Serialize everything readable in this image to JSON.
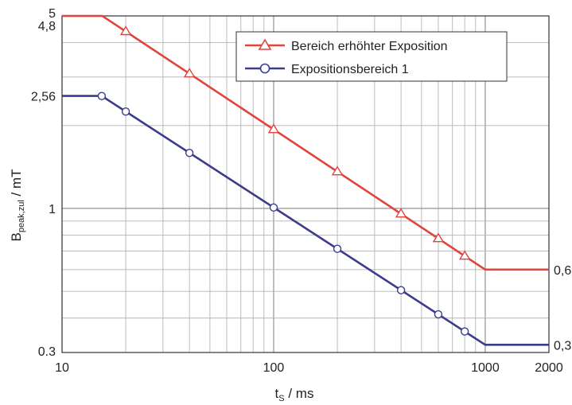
{
  "chart_data": {
    "type": "line",
    "xscale": "log",
    "yscale": "log",
    "xlim": [
      10,
      2000
    ],
    "ylim": [
      0.3,
      5
    ],
    "grid": true,
    "legend_position": "top-right",
    "xlabel": {
      "main": "t",
      "sub": "S",
      "unit": " / ms"
    },
    "ylabel": {
      "main": "B",
      "sub": "peak,zul",
      "unit": " / mT"
    },
    "x_ticks": [
      {
        "value": 10,
        "label": "10"
      },
      {
        "value": 100,
        "label": "100"
      },
      {
        "value": 1000,
        "label": "1000"
      },
      {
        "value": 2000,
        "label": "2000"
      }
    ],
    "y_ticks": [
      {
        "value": 5,
        "label": "5"
      },
      {
        "value": 4.8,
        "label": "4,8"
      },
      {
        "value": 2.56,
        "label": "2,56"
      },
      {
        "value": 1,
        "label": "1"
      },
      {
        "value": 0.3,
        "label": "0.3"
      }
    ],
    "right_labels": [
      {
        "value": 0.6,
        "label": "0,6"
      },
      {
        "value": 0.32,
        "label": "0,32"
      }
    ],
    "series": [
      {
        "name": "Bereich erhöhter Exposition",
        "color": "#e0443c",
        "marker": "triangle",
        "points": [
          [
            10,
            5
          ],
          [
            15.5,
            5
          ],
          [
            1000,
            0.6
          ],
          [
            2000,
            0.6
          ]
        ],
        "marker_x": [
          20,
          40,
          100,
          200,
          400,
          600,
          800
        ]
      },
      {
        "name": "Expositionsbereich 1",
        "color": "#3c3c8c",
        "marker": "circle",
        "points": [
          [
            10,
            2.56
          ],
          [
            15.4,
            2.56
          ],
          [
            1000,
            0.32
          ],
          [
            2000,
            0.32
          ]
        ],
        "marker_x": [
          15.4,
          20,
          40,
          100,
          200,
          400,
          600,
          800
        ]
      }
    ]
  }
}
